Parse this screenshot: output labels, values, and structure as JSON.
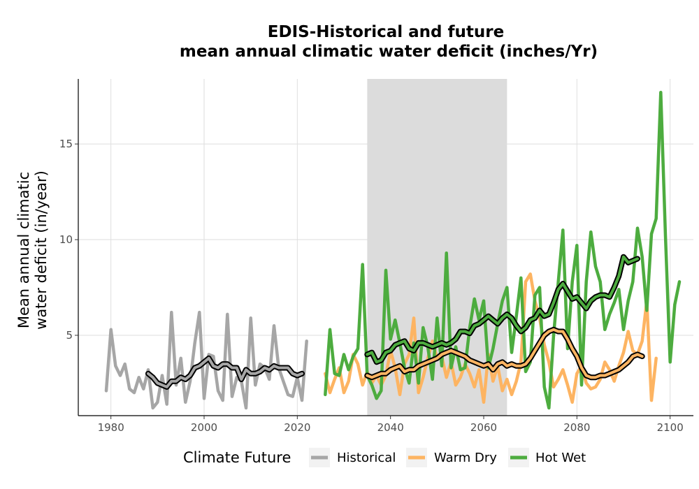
{
  "chart_data": {
    "type": "line",
    "title": [
      "EDIS-Historical and future",
      "mean annual climatic water deficit (inches/Yr)"
    ],
    "xlabel": "",
    "ylabel": [
      "Mean annual climatic",
      "water deficit (in/year)"
    ],
    "xlim": [
      1973,
      2105
    ],
    "ylim": [
      0.8,
      18.4
    ],
    "x_ticks": [
      1980,
      2000,
      2020,
      2040,
      2060,
      2080,
      2100
    ],
    "y_ticks": [
      5,
      10,
      15
    ],
    "grid": true,
    "shaded_period": [
      2035,
      2065
    ],
    "legend": {
      "title": "Climate Future",
      "position": "bottom",
      "entries": [
        "Historical",
        "Warm Dry",
        "Hot Wet"
      ]
    },
    "colors": {
      "Historical": "#a6a6a6",
      "Warm Dry": "#fdb462",
      "Hot Wet": "#4dac3f",
      "shade": "#dcdcdc",
      "smooth": "#000000"
    },
    "series": [
      {
        "name": "Historical",
        "x_start": 1979,
        "values": [
          2.1,
          5.3,
          3.4,
          2.9,
          3.5,
          2.2,
          2.0,
          2.8,
          2.2,
          3.2,
          1.2,
          1.5,
          2.9,
          1.4,
          6.2,
          2.4,
          3.8,
          1.5,
          2.6,
          4.6,
          6.2,
          1.7,
          4.0,
          3.9,
          2.1,
          1.6,
          6.1,
          1.8,
          2.8,
          2.6,
          1.2,
          5.9,
          2.4,
          3.5,
          3.3,
          2.7,
          5.5,
          3.3,
          2.6,
          1.9,
          1.8,
          2.8,
          1.6,
          4.7
        ]
      },
      {
        "name": "Historical (smoothed)",
        "x_start": 1988,
        "values": [
          3.0,
          2.8,
          2.5,
          2.4,
          2.3,
          2.6,
          2.6,
          2.8,
          2.7,
          2.9,
          3.3,
          3.4,
          3.6,
          3.8,
          3.4,
          3.3,
          3.5,
          3.5,
          3.3,
          3.3,
          2.7,
          3.2,
          3.0,
          3.0,
          3.1,
          3.3,
          3.2,
          3.4,
          3.3,
          3.3,
          3.3,
          3.0,
          2.9,
          3.0
        ]
      },
      {
        "name": "Warm Dry",
        "x_start": 2026,
        "values": [
          3.0,
          2.0,
          2.7,
          3.3,
          2.0,
          2.6,
          4.0,
          3.5,
          2.4,
          3.1,
          2.5,
          2.9,
          2.4,
          2.9,
          4.2,
          3.3,
          1.9,
          3.5,
          4.0,
          5.9,
          2.0,
          2.8,
          3.8,
          4.7,
          3.8,
          3.9,
          2.8,
          3.6,
          2.4,
          2.8,
          3.5,
          3.0,
          2.3,
          3.2,
          1.5,
          4.0,
          2.6,
          3.4,
          2.1,
          2.7,
          1.9,
          2.6,
          3.6,
          7.8,
          8.2,
          6.8,
          5.9,
          4.5,
          3.6,
          2.3,
          2.7,
          3.2,
          2.4,
          1.5,
          3.0,
          3.4,
          2.5,
          2.2,
          2.3,
          2.7,
          3.6,
          3.2,
          2.6,
          3.4,
          4.1,
          5.2,
          4.2,
          4.0,
          4.7,
          6.8,
          1.6,
          3.8
        ]
      },
      {
        "name": "Warm Dry (smoothed)",
        "x_start": 2035,
        "values": [
          2.9,
          2.8,
          2.9,
          3.0,
          3.0,
          3.2,
          3.3,
          3.4,
          3.1,
          3.2,
          3.2,
          3.4,
          3.5,
          3.6,
          3.7,
          3.8,
          4.0,
          4.1,
          4.2,
          4.1,
          4.0,
          3.9,
          3.7,
          3.6,
          3.5,
          3.4,
          3.5,
          3.2,
          3.5,
          3.6,
          3.4,
          3.5,
          3.4,
          3.4,
          3.5,
          3.8,
          4.2,
          4.6,
          5.0,
          5.2,
          5.3,
          5.2,
          5.2,
          4.8,
          4.3,
          3.9,
          3.3,
          2.9,
          2.8,
          2.8,
          2.9,
          2.9,
          3.0,
          3.1,
          3.2,
          3.4,
          3.6,
          3.9,
          4.0,
          3.9
        ]
      },
      {
        "name": "Hot Wet",
        "x_start": 2026,
        "values": [
          1.9,
          5.3,
          3.0,
          2.9,
          4.0,
          3.2,
          3.9,
          4.3,
          8.7,
          2.9,
          2.4,
          1.7,
          2.1,
          8.4,
          4.8,
          5.8,
          4.6,
          3.3,
          2.5,
          4.6,
          2.5,
          5.4,
          4.4,
          2.7,
          5.9,
          3.4,
          9.3,
          3.3,
          4.4,
          3.2,
          3.3,
          5.4,
          6.9,
          5.8,
          6.8,
          3.3,
          4.3,
          5.6,
          6.8,
          7.5,
          4.1,
          6.0,
          8.0,
          3.1,
          3.6,
          7.1,
          7.5,
          2.3,
          1.2,
          5.0,
          7.8,
          10.5,
          4.3,
          7.8,
          9.7,
          2.4,
          7.8,
          10.4,
          8.6,
          7.8,
          5.3,
          6.1,
          6.7,
          7.4,
          5.3,
          6.8,
          7.8,
          10.6,
          9.1,
          6.3,
          10.3,
          11.1,
          17.7,
          10.2,
          3.6,
          6.6,
          7.8
        ]
      },
      {
        "name": "Hot Wet (smoothed)",
        "x_start": 2035,
        "values": [
          4.0,
          4.1,
          3.6,
          3.7,
          4.1,
          4.2,
          4.5,
          4.6,
          4.7,
          4.3,
          4.2,
          4.6,
          4.6,
          4.5,
          4.4,
          4.5,
          4.6,
          4.5,
          4.6,
          4.8,
          5.2,
          5.2,
          5.1,
          5.5,
          5.6,
          5.8,
          6.0,
          5.8,
          5.6,
          5.9,
          6.1,
          5.9,
          5.5,
          5.2,
          5.4,
          5.8,
          5.9,
          6.3,
          6.0,
          6.1,
          6.7,
          7.4,
          7.7,
          7.3,
          6.9,
          7.0,
          6.7,
          6.4,
          6.8,
          7.0,
          7.1,
          7.1,
          7.0,
          7.5,
          8.1,
          9.1,
          8.8,
          8.9,
          9.0
        ]
      }
    ]
  }
}
